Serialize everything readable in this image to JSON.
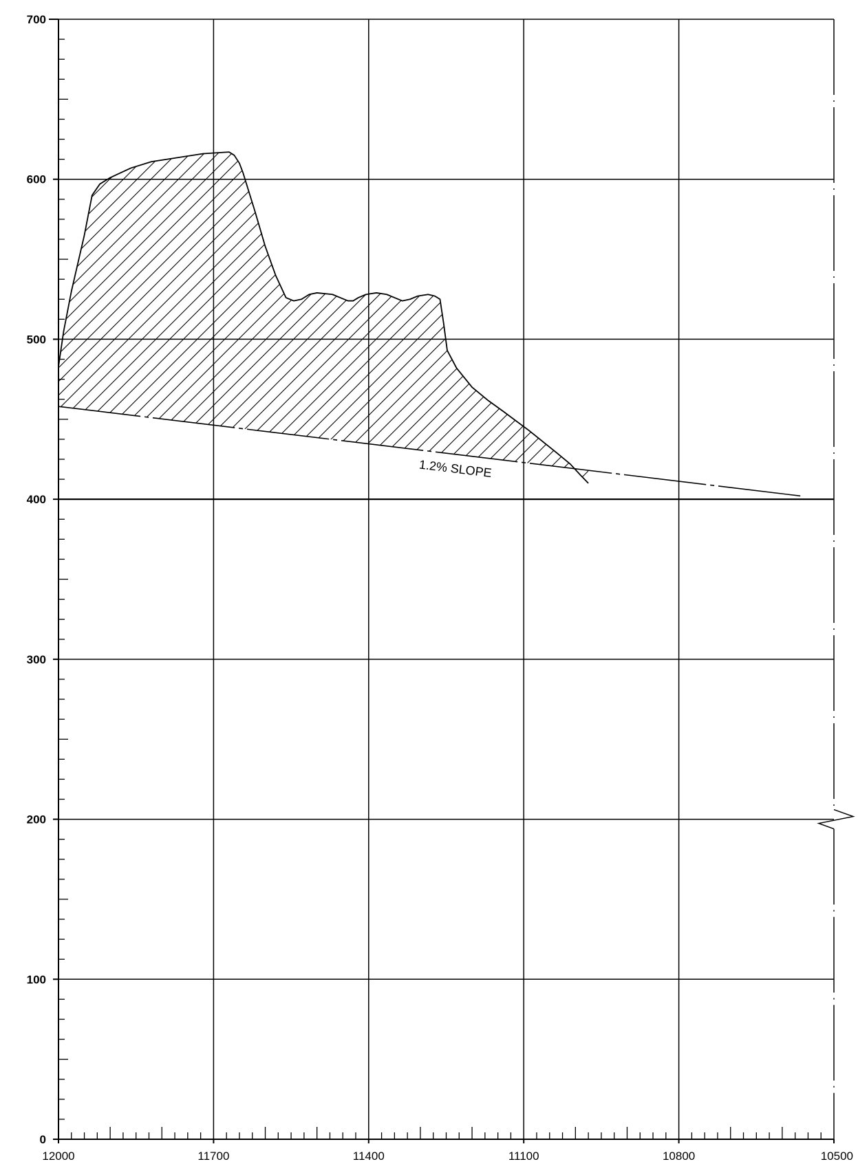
{
  "chart_data": {
    "type": "area",
    "x_axis": {
      "reversed": true,
      "range": [
        12000,
        10500
      ],
      "tick_labels": [
        "12000",
        "11700",
        "11400",
        "11100",
        "10800",
        "10500"
      ],
      "tick_values": [
        12000,
        11700,
        11400,
        11100,
        10800,
        10500
      ],
      "major_step": 300,
      "minor_step": 25
    },
    "y_axis": {
      "range": [
        0,
        700
      ],
      "tick_labels": [
        "0",
        "100",
        "200",
        "300",
        "400",
        "500",
        "600",
        "700"
      ],
      "tick_values": [
        0,
        100,
        200,
        300,
        400,
        500,
        600,
        700
      ],
      "major_step": 100,
      "minor_step": 12.5,
      "broken": true
    },
    "grid": true,
    "profile": {
      "fill": "hatched",
      "top_points": [
        [
          12000,
          483
        ],
        [
          11990,
          505
        ],
        [
          11975,
          530
        ],
        [
          11950,
          565
        ],
        [
          11935,
          590
        ],
        [
          11920,
          597
        ],
        [
          11900,
          601
        ],
        [
          11860,
          607
        ],
        [
          11820,
          611
        ],
        [
          11780,
          613
        ],
        [
          11720,
          616
        ],
        [
          11670,
          617
        ],
        [
          11660,
          615
        ],
        [
          11650,
          610
        ],
        [
          11643,
          604
        ],
        [
          11620,
          580
        ],
        [
          11600,
          558
        ],
        [
          11580,
          540
        ],
        [
          11560,
          526
        ],
        [
          11545,
          524
        ],
        [
          11530,
          525
        ],
        [
          11515,
          528
        ],
        [
          11500,
          529
        ],
        [
          11470,
          528
        ],
        [
          11455,
          526
        ],
        [
          11440,
          524
        ],
        [
          11430,
          524
        ],
        [
          11420,
          526
        ],
        [
          11405,
          528
        ],
        [
          11385,
          529
        ],
        [
          11365,
          528
        ],
        [
          11350,
          526
        ],
        [
          11335,
          524
        ],
        [
          11320,
          525
        ],
        [
          11305,
          527
        ],
        [
          11285,
          528
        ],
        [
          11272,
          527
        ],
        [
          11262,
          525
        ],
        [
          11255,
          510
        ],
        [
          11248,
          493
        ],
        [
          11230,
          482
        ],
        [
          11200,
          470
        ],
        [
          11170,
          462
        ],
        [
          11140,
          455
        ],
        [
          11090,
          443
        ],
        [
          11040,
          430
        ],
        [
          11010,
          422
        ],
        [
          10990,
          415
        ],
        [
          10975,
          410
        ]
      ]
    },
    "slope_line": {
      "start": [
        12000,
        458
      ],
      "end": [
        10563,
        402
      ],
      "label": "1.2% SLOPE"
    }
  }
}
